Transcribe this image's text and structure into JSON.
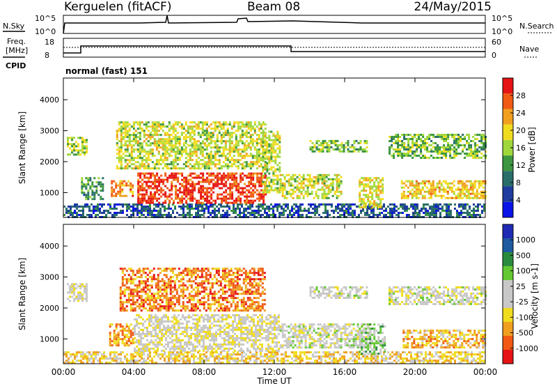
{
  "header": {
    "station": "Kerguelen (fitACF)",
    "beam": "Beam 08",
    "date": "24/May/2015"
  },
  "panels": {
    "nsky_label": "N.Sky",
    "nsearch_label": "N.Search",
    "nsky_ticks": [
      "10^5",
      "10^0"
    ],
    "nsearch_ticks": [
      "10^5",
      "10^0"
    ],
    "freq_label_1": "Freq.",
    "freq_label_2": "[MHz]",
    "freq_ticks": [
      "18",
      "8"
    ],
    "nave_label": "Nave",
    "nave_ticks": [
      "60",
      "0"
    ],
    "cpid_label": "CPID",
    "cpid_text": "normal (fast) 151"
  },
  "colors": {
    "power": [
      "#0a14e6",
      "#1e3c9e",
      "#2a6e6a",
      "#3c9640",
      "#a0d83c",
      "#f0dc1e",
      "#f0a01e",
      "#f05a14",
      "#e61414"
    ],
    "velocity": [
      "#e61414",
      "#f05a14",
      "#f0a01e",
      "#f0dc1e",
      "#c8c8c8",
      "#c8c8c8",
      "#64c832",
      "#2a8a3c",
      "#1e5aa0",
      "#1e2ab4"
    ]
  },
  "chart_data": [
    {
      "type": "heatmap",
      "quantity": "Power",
      "ylabel": "Slant Range [km]",
      "xlabel": "",
      "x_ticks": [
        "00:00",
        "04:00",
        "08:00",
        "12:00",
        "16:00",
        "20:00",
        "00:00"
      ],
      "y_ticks": [
        1000,
        2000,
        3000,
        4000
      ],
      "ylim": [
        200,
        4700
      ],
      "xlim_hours": [
        0,
        24
      ],
      "colorbar_label": "Power [dB]",
      "colorbar_ticks": [
        "4",
        "8",
        "12",
        "16",
        "20",
        "24",
        "28"
      ],
      "colorbar_range": [
        0,
        32
      ],
      "regions": [
        {
          "t": [
            0.0,
            24.0
          ],
          "r": [
            200,
            650
          ],
          "level": 0.22
        },
        {
          "t": [
            0.2,
            1.3
          ],
          "r": [
            2200,
            2800
          ],
          "level": 0.5
        },
        {
          "t": [
            1.0,
            2.2
          ],
          "r": [
            800,
            1500
          ],
          "level": 0.35
        },
        {
          "t": [
            2.7,
            4.0
          ],
          "r": [
            900,
            1400
          ],
          "level": 0.75
        },
        {
          "t": [
            3.0,
            11.5
          ],
          "r": [
            1800,
            3300
          ],
          "level": 0.55
        },
        {
          "t": [
            4.2,
            11.5
          ],
          "r": [
            700,
            1650
          ],
          "level": 0.9
        },
        {
          "t": [
            11.3,
            12.3
          ],
          "r": [
            1000,
            3000
          ],
          "level": 0.55
        },
        {
          "t": [
            12.3,
            15.8
          ],
          "r": [
            800,
            1600
          ],
          "level": 0.55
        },
        {
          "t": [
            14.0,
            17.3
          ],
          "r": [
            2300,
            2700
          ],
          "level": 0.45
        },
        {
          "t": [
            16.8,
            18.2
          ],
          "r": [
            500,
            1500
          ],
          "level": 0.6
        },
        {
          "t": [
            18.5,
            24.0
          ],
          "r": [
            2100,
            2900
          ],
          "level": 0.45
        },
        {
          "t": [
            19.2,
            24.0
          ],
          "r": [
            800,
            1400
          ],
          "level": 0.65
        }
      ]
    },
    {
      "type": "heatmap",
      "quantity": "Velocity",
      "ylabel": "Slant Range [km]",
      "xlabel": "Time UT",
      "x_ticks": [
        "00:00",
        "04:00",
        "08:00",
        "12:00",
        "16:00",
        "20:00",
        "00:00"
      ],
      "y_ticks": [
        1000,
        2000,
        3000,
        4000
      ],
      "ylim": [
        200,
        4700
      ],
      "xlim_hours": [
        0,
        24
      ],
      "colorbar_label": "Velocity [m s-1]",
      "colorbar_ticks": [
        "-1000",
        "-500",
        "-100",
        "-25",
        "25",
        "100",
        "500",
        "1000"
      ],
      "regions": [
        {
          "t": [
            0.0,
            24.0
          ],
          "r": [
            200,
            600
          ],
          "level": 0.35
        },
        {
          "t": [
            0.2,
            1.3
          ],
          "r": [
            2200,
            2800
          ],
          "level": 0.45
        },
        {
          "t": [
            2.6,
            4.0
          ],
          "r": [
            800,
            1500
          ],
          "level": 0.25
        },
        {
          "t": [
            3.2,
            11.5
          ],
          "r": [
            1900,
            3300
          ],
          "level": 0.2
        },
        {
          "t": [
            4.0,
            12.3
          ],
          "r": [
            600,
            1800
          ],
          "level": 0.45
        },
        {
          "t": [
            12.3,
            17.5
          ],
          "r": [
            700,
            1500
          ],
          "level": 0.5
        },
        {
          "t": [
            14.0,
            17.3
          ],
          "r": [
            2300,
            2700
          ],
          "level": 0.5
        },
        {
          "t": [
            16.8,
            18.3
          ],
          "r": [
            500,
            1500
          ],
          "level": 0.6
        },
        {
          "t": [
            18.5,
            24.0
          ],
          "r": [
            2100,
            2700
          ],
          "level": 0.48
        },
        {
          "t": [
            19.3,
            24.0
          ],
          "r": [
            700,
            1300
          ],
          "level": 0.3
        }
      ]
    }
  ]
}
